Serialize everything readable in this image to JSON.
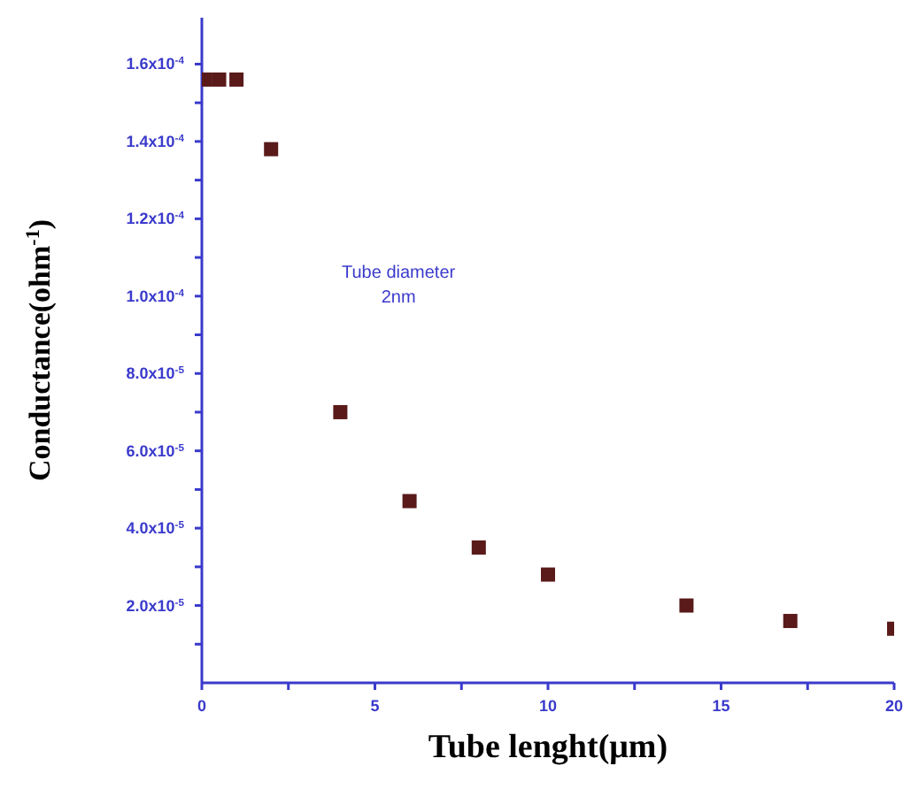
{
  "chart_data": {
    "type": "scatter",
    "xlabel": "Tube lenght(μm)",
    "ylabel": "Conductance(ohm$^{-1}$)",
    "annotations": [
      "Tube diameter\n2nm"
    ],
    "x": [
      0.1,
      0.5,
      1,
      2,
      4,
      6,
      8,
      10,
      14,
      17,
      20
    ],
    "series": [
      {
        "color": "#5a1a1a",
        "values": [
          0.000156,
          0.000156,
          0.000156,
          0.000138,
          7e-05,
          4.7e-05,
          3.5e-05,
          2.8e-05,
          2e-05,
          1.6e-05,
          1.4e-05
        ]
      }
    ],
    "marker": "square",
    "grid": false,
    "legend": false,
    "xlim": [
      0,
      20
    ],
    "xticks": [
      0,
      {
        "value": 2.5,
        "label": null
      },
      5,
      {
        "value": 7.5,
        "label": null
      },
      10,
      {
        "value": 12.5,
        "label": null
      },
      15,
      {
        "value": 17.5,
        "label": null
      },
      20
    ],
    "ylim": [
      0,
      0.000172
    ],
    "yticks": [
      {
        "value": 1e-05,
        "label": null
      },
      {
        "value": 2e-05,
        "label": "2.0x10$^{-5}$"
      },
      {
        "value": 3e-05,
        "label": null
      },
      {
        "value": 4e-05,
        "label": "4.0x10$^{-5}$"
      },
      {
        "value": 5e-05,
        "label": null
      },
      {
        "value": 6e-05,
        "label": "6.0x10$^{-5}$"
      },
      {
        "value": 7e-05,
        "label": null
      },
      {
        "value": 8e-05,
        "label": "8.0x10$^{-5}$"
      },
      {
        "value": 9e-05,
        "label": null
      },
      {
        "value": 0.0001,
        "label": "1.0x10$^{-4}$"
      },
      {
        "value": 0.00011,
        "label": null
      },
      {
        "value": 0.00012,
        "label": "1.2x10$^{-4}$"
      },
      {
        "value": 0.00013,
        "label": null
      },
      {
        "value": 0.00014,
        "label": "1.4x10$^{-4}$"
      },
      {
        "value": 0.00015,
        "label": null
      },
      {
        "value": 0.00016,
        "label": "1.6x10$^{-4}$"
      }
    ]
  }
}
